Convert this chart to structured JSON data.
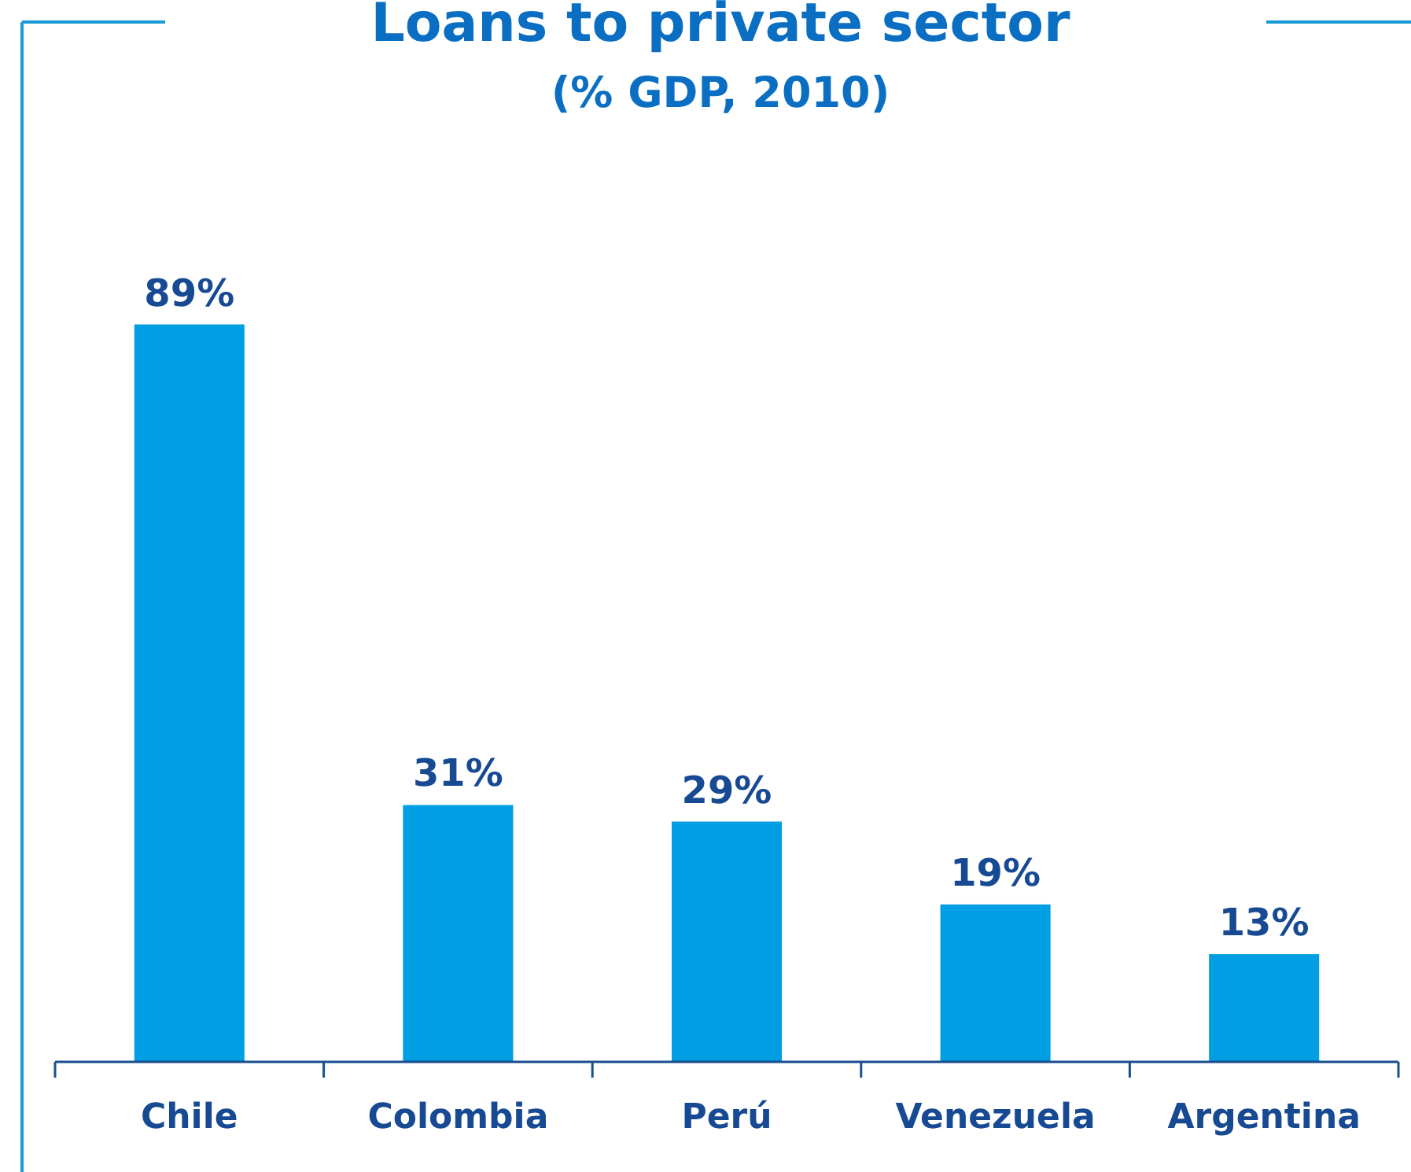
{
  "chart_data": {
    "type": "bar",
    "title": "Loans to private sector",
    "subtitle": "(% GDP, 2010)",
    "categories": [
      "Chile",
      "Colombia",
      "Perú",
      "Venezuela",
      "Argentina"
    ],
    "values": [
      89,
      31,
      29,
      19,
      13
    ],
    "value_labels": [
      "89%",
      "31%",
      "29%",
      "19%",
      "13%"
    ],
    "color": "#009ee2"
  }
}
